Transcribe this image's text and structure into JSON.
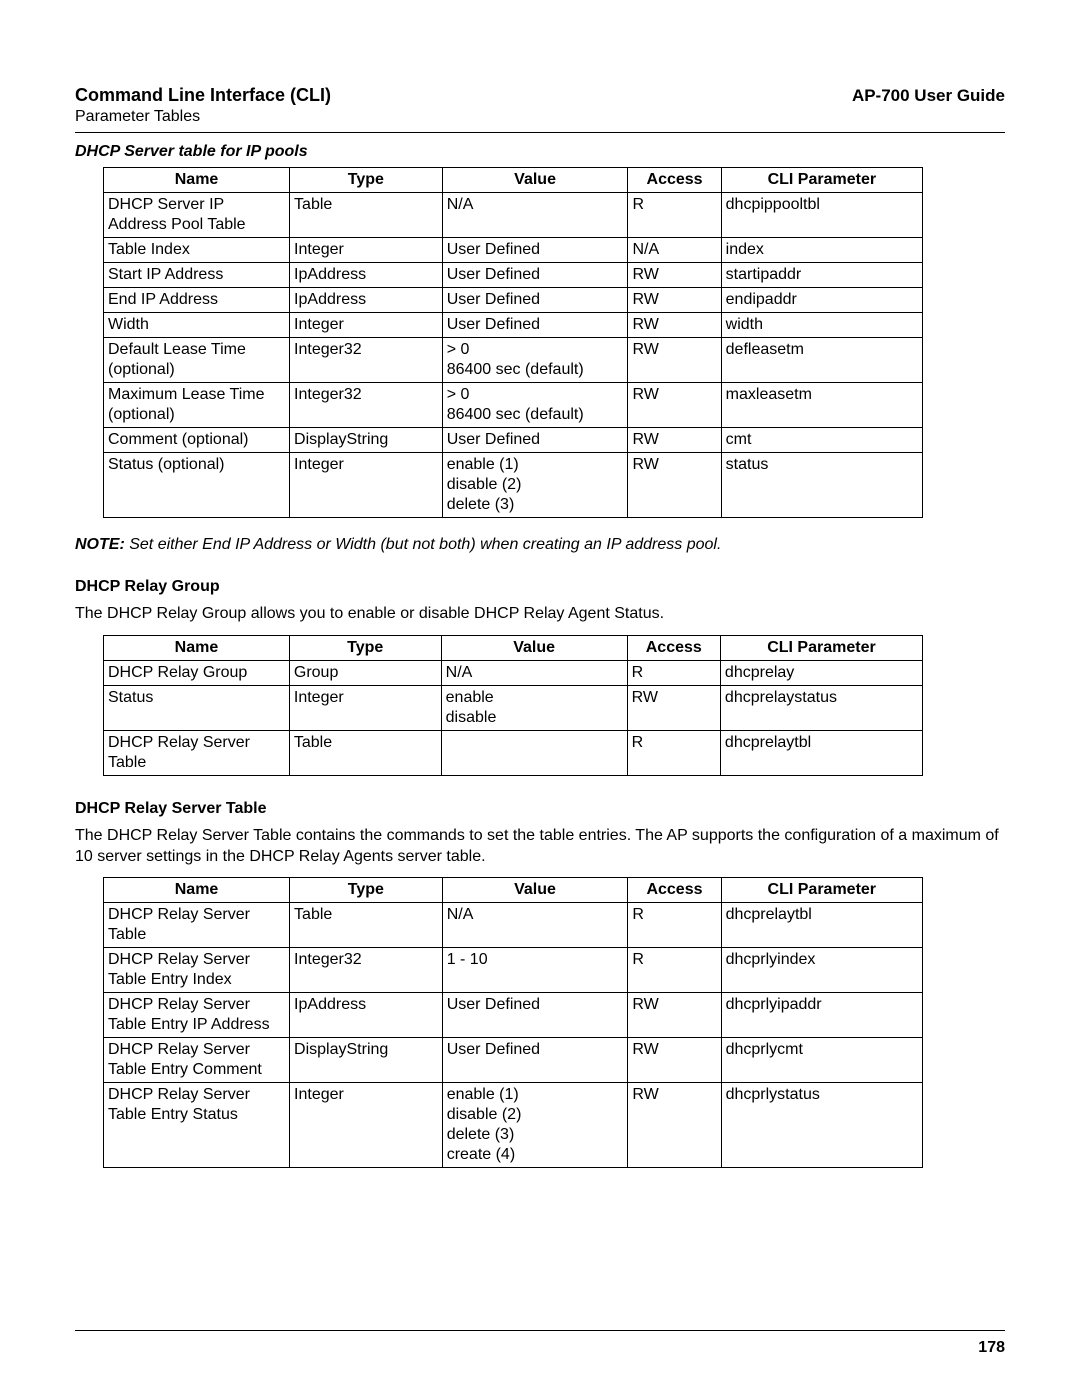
{
  "header": {
    "title": "Command Line Interface (CLI)",
    "subtitle": "Parameter Tables",
    "guide": "AP-700 User Guide"
  },
  "section1": {
    "heading": "DHCP Server table for IP pools",
    "columns": [
      "Name",
      "Type",
      "Value",
      "Access",
      "CLI Parameter"
    ],
    "rows": [
      [
        "DHCP Server IP Address Pool Table",
        "Table",
        "N/A",
        "R",
        "dhcpippooltbl"
      ],
      [
        "Table Index",
        "Integer",
        "User Defined",
        "N/A",
        "index"
      ],
      [
        "Start IP Address",
        "IpAddress",
        "User Defined",
        "RW",
        "startipaddr"
      ],
      [
        "End IP Address",
        "IpAddress",
        "User Defined",
        "RW",
        "endipaddr"
      ],
      [
        "Width",
        "Integer",
        "User Defined",
        "RW",
        "width"
      ],
      [
        "Default Lease Time (optional)",
        "Integer32",
        "> 0\n86400 sec (default)",
        "RW",
        "defleasetm"
      ],
      [
        "Maximum Lease Time (optional)",
        "Integer32",
        "> 0\n86400 sec (default)",
        "RW",
        "maxleasetm"
      ],
      [
        "Comment (optional)",
        "DisplayString",
        "User Defined",
        "RW",
        "cmt"
      ],
      [
        "Status (optional)",
        "Integer",
        "enable (1)\ndisable (2)\ndelete (3)",
        "RW",
        "status"
      ]
    ]
  },
  "note": {
    "label": "NOTE:",
    "body": "Set either End IP Address or Width (but not both) when creating an IP address pool."
  },
  "section2": {
    "heading": "DHCP Relay Group",
    "intro": "The DHCP Relay Group allows you to enable or disable DHCP Relay Agent Status.",
    "columns": [
      "Name",
      "Type",
      "Value",
      "Access",
      "CLI Parameter"
    ],
    "rows": [
      [
        "DHCP Relay Group",
        "Group",
        "N/A",
        "R",
        "dhcprelay"
      ],
      [
        "Status",
        "Integer",
        "enable\ndisable",
        "RW",
        "dhcprelaystatus"
      ],
      [
        "DHCP Relay Server Table",
        "Table",
        "",
        "R",
        "dhcprelaytbl"
      ]
    ]
  },
  "section3": {
    "heading": "DHCP Relay Server Table",
    "intro": "The DHCP Relay Server Table contains the commands to set the table entries. The AP supports the configuration of a maximum of 10 server settings in the DHCP Relay Agents server table.",
    "columns": [
      "Name",
      "Type",
      "Value",
      "Access",
      "CLI Parameter"
    ],
    "rows": [
      [
        "DHCP Relay Server Table",
        "Table",
        "N/A",
        "R",
        "dhcprelaytbl"
      ],
      [
        "DHCP Relay Server Table Entry Index",
        "Integer32",
        "1 - 10",
        "R",
        "dhcprlyindex"
      ],
      [
        "DHCP Relay Server Table Entry IP Address",
        "IpAddress",
        "User Defined",
        "RW",
        "dhcprlyipaddr"
      ],
      [
        "DHCP Relay Server Table Entry Comment",
        "DisplayString",
        "User Defined",
        "RW",
        "dhcprlycmt"
      ],
      [
        "DHCP Relay Server Table Entry Status",
        "Integer",
        "enable (1)\ndisable (2)\ndelete (3)\ncreate (4)",
        "RW",
        "dhcprlystatus"
      ]
    ]
  },
  "page_number": "178"
}
